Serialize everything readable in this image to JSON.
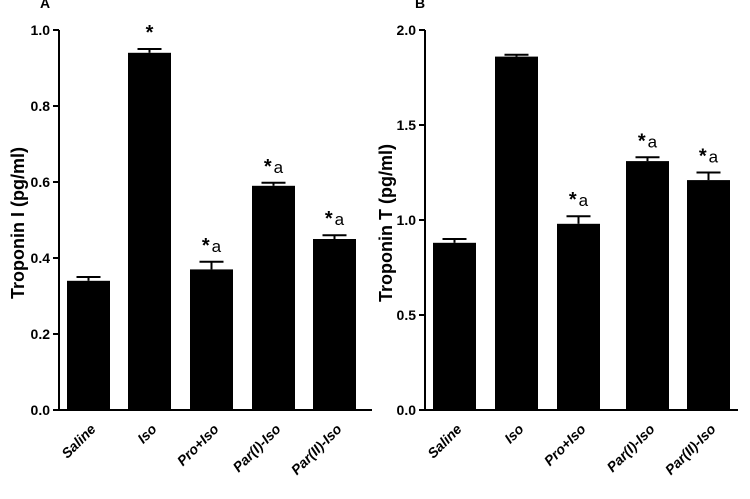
{
  "chart_data": [
    {
      "type": "bar",
      "panel_label": "A",
      "ylabel": "Troponin I (pg/ml)",
      "categories": [
        "Saline",
        "Iso",
        "Pro+Iso",
        "Par(I)-Iso",
        "Par(II)-Iso"
      ],
      "values": [
        0.34,
        0.94,
        0.37,
        0.59,
        0.45
      ],
      "errors": [
        0.01,
        0.01,
        0.02,
        0.008,
        0.01
      ],
      "annotations": [
        {
          "star": "",
          "letter": ""
        },
        {
          "star": "*",
          "letter": ""
        },
        {
          "star": "*",
          "letter": "a"
        },
        {
          "star": "*",
          "letter": "a"
        },
        {
          "star": "*",
          "letter": "a"
        }
      ],
      "ylim": [
        0.0,
        1.0
      ],
      "yticks": [
        "0.0",
        "0.2",
        "0.4",
        "0.6",
        "0.8",
        "1.0"
      ],
      "bar_color": "#000000"
    },
    {
      "type": "bar",
      "panel_label": "B",
      "ylabel": "Troponin T (pg/ml)",
      "categories": [
        "Saline",
        "Iso",
        "Pro+Iso",
        "Par(I)-Iso",
        "Par(II)-Iso"
      ],
      "values": [
        0.88,
        1.86,
        0.98,
        1.31,
        1.21
      ],
      "errors": [
        0.02,
        0.01,
        0.04,
        0.02,
        0.04
      ],
      "annotations": [
        {
          "star": "",
          "letter": ""
        },
        {
          "star": "",
          "letter": ""
        },
        {
          "star": "*",
          "letter": "a"
        },
        {
          "star": "*",
          "letter": "a"
        },
        {
          "star": "*",
          "letter": "a"
        }
      ],
      "ylim": [
        0.0,
        2.0
      ],
      "yticks": [
        "0.0",
        "0.5",
        "1.0",
        "1.5",
        "2.0"
      ],
      "bar_color": "#000000"
    }
  ]
}
